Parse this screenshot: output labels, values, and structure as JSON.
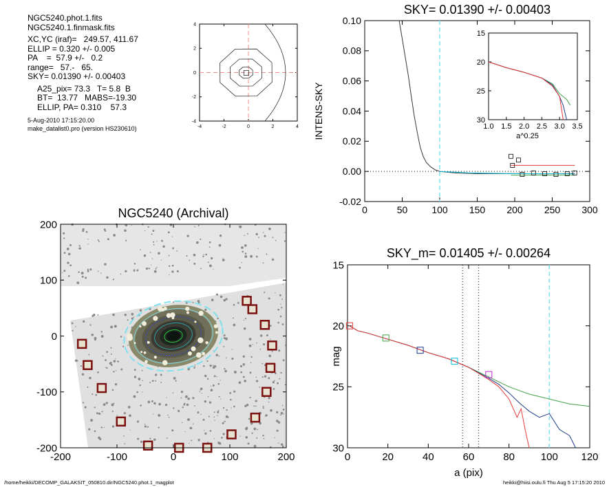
{
  "info": {
    "file1": "NGC5240.phot.1.fits",
    "file2": "NGC5240.1.finmask.fits",
    "xcyc": "XC,YC (iraf)=   249.57, 411.67",
    "ellip": "ELLIP = 0.320 +/- 0.005",
    "pa": "PA    =  57.9 +/-   0.2",
    "range": "range=   57.-   65.",
    "sky": "SKY= 0.01390 +/- 0.00403",
    "a25": "A25_pix= 73.3   T= 5.8  B",
    "bt": "BT=  13.77   MABS=-19.30",
    "ellip_pa": "ELLIP, PA= 0.310    57.3",
    "date": "5-Aug-2010 17:15:20.00",
    "prog": "make_datalist0.pro (version HS230610)"
  },
  "footer": {
    "left": "/home/heikki/DECOMP_GALAKSIT_050810.dir/NGC5240.phot.1_magplot",
    "right": "heikki@hiisi.oulu.fi  Thu Aug  5 17:15:20 2010"
  },
  "chart_data": [
    {
      "type": "line",
      "id": "center",
      "title": "",
      "xlim": [
        -4,
        4
      ],
      "ylim": [
        -4,
        4
      ],
      "xticks": [
        "-4",
        "-2",
        "0",
        "2",
        "4"
      ],
      "yticks": [
        "-4",
        "-2",
        "0",
        "2",
        "4"
      ]
    },
    {
      "type": "line",
      "id": "sky",
      "title": "SKY= 0.01390 +/- 0.00403",
      "xlabel": "",
      "ylabel": "INTENS-SKY",
      "xlim": [
        0,
        300
      ],
      "ylim": [
        -0.02,
        0.1
      ],
      "xticks": [
        "0",
        "50",
        "100",
        "150",
        "200",
        "250",
        "300"
      ],
      "yticks": [
        "-0.02",
        "0.00",
        "0.02",
        "0.04",
        "0.06",
        "0.08",
        "0.10"
      ],
      "vline": 100,
      "series": [
        {
          "color": "#333333",
          "x": [
            46,
            52,
            58,
            62,
            66,
            70,
            74,
            78,
            82,
            88,
            94,
            100,
            110,
            120,
            130,
            150,
            180,
            200,
            240,
            280
          ],
          "y": [
            0.1,
            0.082,
            0.064,
            0.05,
            0.037,
            0.026,
            0.016,
            0.01,
            0.006,
            0.003,
            0.001,
            0.0,
            -0.0005,
            -0.001,
            -0.0012,
            -0.0015,
            -0.0015,
            -0.0014,
            -0.0016,
            -0.0014
          ]
        },
        {
          "color": "#00bcd4",
          "x": [
            100,
            140,
            200,
            250,
            280
          ],
          "y": [
            0.0,
            -0.001,
            -0.0015,
            -0.0015,
            -0.0016
          ]
        },
        {
          "color": "#e53935",
          "x": [
            195,
            280
          ],
          "y": [
            0.004,
            0.004
          ]
        },
        {
          "color": "#43a047",
          "x": [
            195,
            280
          ],
          "y": [
            -0.0025,
            -0.0025
          ]
        }
      ],
      "markers_x": [
        195,
        197,
        205,
        210,
        225,
        240,
        255,
        270,
        280
      ],
      "markers_y": [
        0.01,
        0.004,
        0.0075,
        -0.002,
        -0.001,
        -0.0015,
        -0.002,
        -0.0015,
        -0.001
      ],
      "inset": {
        "xlabel": "a^0.25",
        "xlim": [
          1.0,
          3.5
        ],
        "ylim": [
          30,
          15
        ],
        "xticks": [
          "1.0",
          "1.5",
          "2.0",
          "2.5",
          "3.0",
          "3.5"
        ],
        "yticks": [
          "15",
          "20",
          "25",
          "30"
        ],
        "series": [
          {
            "color": "#43a047",
            "x": [
              1.0,
              1.5,
              2.0,
              2.5,
              2.8,
              3.0,
              3.2,
              3.3
            ],
            "y": [
              20.0,
              21.0,
              21.8,
              22.8,
              23.8,
              25.5,
              26.5,
              27.5
            ]
          },
          {
            "color": "#1e3a8a",
            "x": [
              1.0,
              1.5,
              2.0,
              2.5,
              2.8,
              3.0,
              3.1,
              3.2
            ],
            "y": [
              20.0,
              21.0,
              21.8,
              22.8,
              24.0,
              26.0,
              27.5,
              30.0
            ]
          },
          {
            "color": "#e53935",
            "x": [
              1.0,
              1.5,
              2.0,
              2.5,
              2.8,
              3.0,
              3.05,
              3.1
            ],
            "y": [
              20.0,
              21.0,
              21.8,
              22.8,
              24.2,
              26.0,
              28.0,
              30.0
            ]
          }
        ]
      }
    },
    {
      "type": "heatmap",
      "id": "image",
      "title": "NGC5240 (Archival)",
      "xlim": [
        -200,
        200
      ],
      "ylim": [
        -200,
        200
      ],
      "xticks": [
        "-200",
        "-100",
        "0",
        "100",
        "200"
      ],
      "yticks": [
        "-200",
        "-100",
        "0",
        "100",
        "200"
      ],
      "ellipse_pa": 57.9,
      "ellipse_a": 80,
      "ellipse_ellip": 0.32,
      "squares_x": [
        -162,
        -152,
        -127,
        -93,
        -45,
        10,
        60,
        103,
        130,
        140,
        162,
        175,
        172,
        165,
        145
      ],
      "squares_y": [
        -14,
        -52,
        -93,
        -153,
        -196,
        -200,
        -200,
        -176,
        63,
        48,
        20,
        -17,
        -57,
        -100,
        -146
      ]
    },
    {
      "type": "line",
      "id": "mag",
      "title": "SKY_m=  0.01405 +/- 0.00264",
      "xlabel": "a (pix)",
      "ylabel": "mag",
      "xlim": [
        0,
        120
      ],
      "ylim": [
        30,
        15
      ],
      "xticks": [
        "0",
        "20",
        "40",
        "60",
        "80",
        "100",
        "120"
      ],
      "yticks": [
        "15",
        "20",
        "25",
        "30"
      ],
      "vlines_dotted": [
        57,
        65
      ],
      "vline": 100,
      "series": [
        {
          "color": "#43a047",
          "x": [
            1,
            5,
            10,
            20,
            30,
            40,
            50,
            60,
            70,
            75,
            80,
            85,
            90,
            95,
            100,
            110,
            120
          ],
          "y": [
            20.0,
            20.4,
            20.6,
            21.1,
            21.6,
            22.2,
            22.7,
            23.4,
            24.2,
            24.6,
            25.0,
            25.3,
            25.6,
            25.8,
            26.0,
            26.4,
            26.6
          ]
        },
        {
          "color": "#1e3a8a",
          "x": [
            1,
            5,
            10,
            20,
            30,
            40,
            50,
            60,
            70,
            75,
            80,
            85,
            90,
            95,
            100,
            105,
            110,
            113
          ],
          "y": [
            20.0,
            20.4,
            20.6,
            21.1,
            21.6,
            22.2,
            22.7,
            23.4,
            24.3,
            24.8,
            25.5,
            26.3,
            27.0,
            27.5,
            27.2,
            28.5,
            29.0,
            30.0
          ]
        },
        {
          "color": "#e53935",
          "x": [
            1,
            5,
            10,
            20,
            30,
            40,
            50,
            60,
            70,
            75,
            80,
            84,
            86,
            88,
            90
          ],
          "y": [
            20.0,
            20.4,
            20.6,
            21.1,
            21.6,
            22.2,
            22.7,
            23.4,
            24.4,
            25.0,
            26.0,
            27.5,
            26.8,
            28.5,
            30.0
          ]
        }
      ],
      "markers_x": [
        1,
        19,
        36,
        53,
        70
      ],
      "markers_y": [
        20.0,
        21.0,
        22.0,
        22.9,
        24.0
      ],
      "marker_colors": [
        "#e53935",
        "#43a047",
        "#1e3a8a",
        "#00bcd4",
        "#c026d3"
      ]
    }
  ]
}
